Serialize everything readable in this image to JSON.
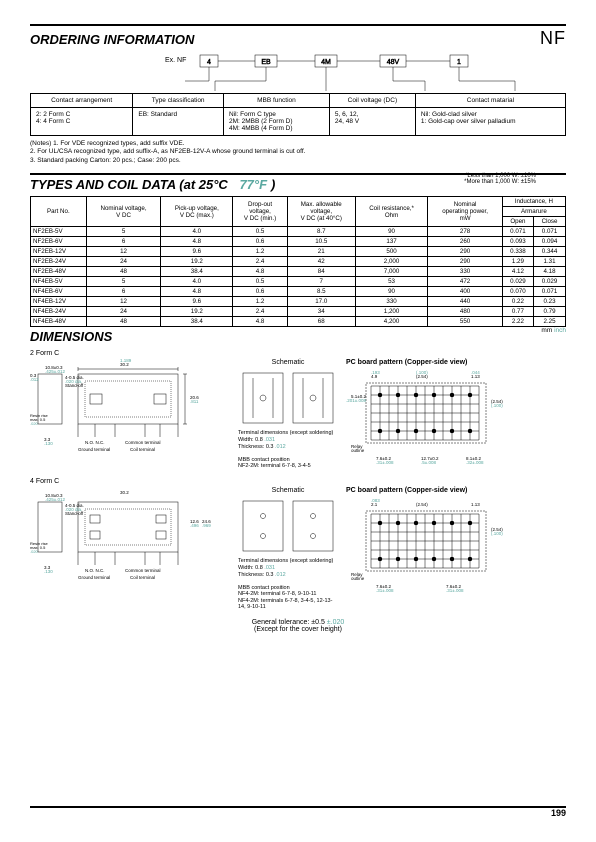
{
  "page_label": "NF",
  "page_num": "199",
  "ordering": {
    "title": "ORDERING INFORMATION",
    "ex_prefix": "Ex.  NF",
    "boxes": [
      "4",
      "EB",
      "4M",
      "48V",
      "1"
    ],
    "headers": [
      "Contact arrangement",
      "Type classification",
      "MBB function",
      "Coil voltage (DC)",
      "Contact matarial"
    ],
    "cells": [
      "2: 2 Form C\n4: 4 Form C",
      "EB: Standard",
      "Nil: Form C type\n2M: 2MBB (2 Form D)\n4M: 4MBB (4 Form D)",
      "5, 6, 12,\n24, 48 V",
      "Nil: Gold-clad silver\n1: Gold-cap over silver palladium"
    ],
    "notes": "(Notes) 1. For VDE recognized types, add suffix VDE.\n2. For UL/CSA recognized type, add suffix-A, as NF2EB-12V-A whose ground terminal is cut off.\n3. Standard packing  Carton: 20 pcs.; Case: 200 pcs."
  },
  "types": {
    "title": "TYPES AND COIL DATA (at 25°C",
    "title_teal": "77°F",
    "title_close": ")",
    "note1": "*Less than 1,000 W: ±10%",
    "note2": "*More than 1,000 W: ±15%",
    "headers": {
      "part": "Part No.",
      "nom": "Nominal voltage,\nV DC",
      "pickup": "Pick-up voltage,\nV DC (max.)",
      "dropout": "Drop-out\nvoltage,\nV DC (min.)",
      "maxallow": "Max. allowable\nvoltage,\nV DC (at 40°C)",
      "coilres": "Coil resistance,*\nOhm",
      "nomop": "Nominal\noperating power,\nmW",
      "induct": "Inductance, H",
      "arm": "Armarure",
      "open": "Open",
      "close": "Close"
    },
    "rows": [
      [
        "NF2EB-5V",
        "5",
        "4.0",
        "0.5",
        "8.7",
        "90",
        "278",
        "0.071",
        "0.071"
      ],
      [
        "NF2EB-6V",
        "6",
        "4.8",
        "0.6",
        "10.5",
        "137",
        "260",
        "0.093",
        "0.094"
      ],
      [
        "NF2EB-12V",
        "12",
        "9.6",
        "1.2",
        "21",
        "500",
        "290",
        "0.338",
        "0.344"
      ],
      [
        "NF2EB-24V",
        "24",
        "19.2",
        "2.4",
        "42",
        "2,000",
        "290",
        "1.29",
        "1.31"
      ],
      [
        "NF2EB-48V",
        "48",
        "38.4",
        "4.8",
        "84",
        "7,000",
        "330",
        "4.12",
        "4.18"
      ],
      [
        "NF4EB-5V",
        "5",
        "4.0",
        "0.5",
        "7",
        "53",
        "472",
        "0.029",
        "0.029"
      ],
      [
        "NF4EB-6V",
        "6",
        "4.8",
        "0.6",
        "8.5",
        "90",
        "400",
        "0.070",
        "0.071"
      ],
      [
        "NF4EB-12V",
        "12",
        "9.6",
        "1.2",
        "17.0",
        "330",
        "440",
        "0.22",
        "0.23"
      ],
      [
        "NF4EB-24V",
        "24",
        "19.2",
        "2.4",
        "34",
        "1,200",
        "480",
        "0.77",
        "0.79"
      ],
      [
        "NF4EB-48V",
        "48",
        "38.4",
        "4.8",
        "68",
        "4,200",
        "550",
        "2.22",
        "2.25"
      ]
    ]
  },
  "dimensions": {
    "title": "DIMENSIONS",
    "unit": "mm",
    "unit_teal": "inch",
    "form2": "2 Form C",
    "form4": "4 Form C",
    "schematic": "Schematic",
    "pcb": "PC board pattern (Copper-side view)",
    "term_dim": "Terminal dimensions (except soldering)\nWidth: 0.8",
    "term_dim_teal": ".031",
    "thick": "Thickness: 0.3",
    "thick_teal": ".012",
    "mbb2": "MBB contact position\nNF2-2M: terminal 6-7-8, 3-4-5",
    "mbb4": "MBB contact position\nNF4-2M: terminal 6-7-8, 9-10-11\nNF4-2M: terminals 6-7-8, 3-4-5, 12-13-14, 9-10-11",
    "gen_tol": "General tolerance: ±0.5",
    "gen_tol_teal": "±.020",
    "gen_tol2": "(Except for the cover height)",
    "labels": {
      "side_dim": "10.8±0.3",
      "side_dim_t": ".425±.012",
      "stand": "4-0.5 dia.",
      "stand_t": ".020 dia.",
      "stand2": "Stand-off",
      "resin": "Resin rise\nmax. 0.5",
      "resin_t": ".020",
      "ground": "Ground terminal",
      "coil": "Coil terminal",
      "common": "Common terminal",
      "noc": "N.O.  N.C.",
      "d33": "3.3",
      "d33t": ".130",
      "d03": "0.3",
      "d03t": ".012",
      "d302": "30.2",
      "d302t": "1.189",
      "d208": "20.8",
      "d208t": ".819",
      "d206": "20.6",
      "d206t": ".811",
      "d126": "12.6",
      "d126t": "24.6",
      "d126b": ".496",
      "d126bt": ".969",
      "relay": "Relay\noutline",
      "d254": "(2.54)",
      "d254t": "(.100)",
      "d49": "4.9",
      "d49t": ".193",
      "d51": "5.1±0.2",
      "d51t": ".201±.008",
      "d113": "1.13",
      "d113t": ".044",
      "d21": "2.1",
      "d21t": ".083",
      "d7610": "7.6±0.2",
      "d7610t": ".31±.008",
      "d12710": "12.7±0.2",
      "d12710t": ".5±.008",
      "d810": "8.1±0.2",
      "d810t": ".32±.008"
    }
  }
}
